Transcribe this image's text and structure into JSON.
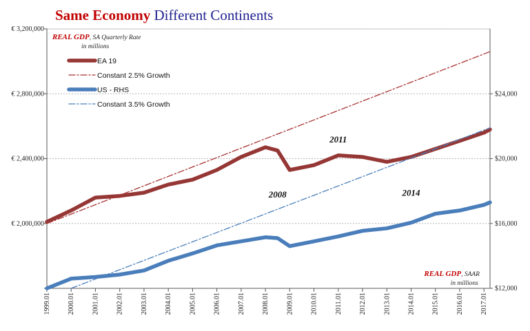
{
  "chart_data": {
    "type": "line",
    "title_bold": "Same Economy",
    "title_rest": "Different Continents",
    "left_axis": {
      "label_main": "REAL GDP",
      "label_rest": ", SA Quarterly Rate",
      "label_unit": "in millions",
      "ylim": [
        1600000,
        3200000
      ],
      "ticks": [
        {
          "value": 3200000,
          "label": "€ 3,200,000"
        },
        {
          "value": 2800000,
          "label": "€ 2,800,000"
        },
        {
          "value": 2400000,
          "label": "€ 2,400,000"
        },
        {
          "value": 2000000,
          "label": "€ 2,000,000"
        },
        {
          "value": 1600000,
          "label": ""
        }
      ]
    },
    "right_axis": {
      "label_main": "REAL GDP",
      "label_rest": ", SAAR",
      "label_unit": "in millions",
      "ylim": [
        12000,
        28000
      ],
      "ticks": [
        {
          "value": 24000,
          "label": "$24,000"
        },
        {
          "value": 20000,
          "label": "$20,000"
        },
        {
          "value": 16000,
          "label": "$16,000"
        },
        {
          "value": 12000,
          "label": "$12,000"
        }
      ]
    },
    "x_ticks": [
      "1999.Q1",
      "2000.Q1",
      "2001.Q1",
      "2002.Q1",
      "2003.Q1",
      "2004.Q1",
      "2005.Q1",
      "2006.Q1",
      "2007.Q1",
      "2008.Q1",
      "2009.Q1",
      "2010.Q1",
      "2011.Q1",
      "2012.Q1",
      "2013.Q1",
      "2014.Q1",
      "2015.Q1",
      "2016.Q1",
      "2017.Q1"
    ],
    "series": [
      {
        "name": "EA 19",
        "axis": "left",
        "color": "#953735",
        "style": "solid",
        "points": [
          [
            "1999.Q1",
            2010000
          ],
          [
            "2000.Q1",
            2080000
          ],
          [
            "2001.Q1",
            2160000
          ],
          [
            "2002.Q1",
            2170000
          ],
          [
            "2003.Q1",
            2190000
          ],
          [
            "2004.Q1",
            2240000
          ],
          [
            "2005.Q1",
            2270000
          ],
          [
            "2006.Q1",
            2330000
          ],
          [
            "2007.Q1",
            2410000
          ],
          [
            "2008.Q1",
            2470000
          ],
          [
            "2008.Q3",
            2450000
          ],
          [
            "2009.Q1",
            2330000
          ],
          [
            "2010.Q1",
            2360000
          ],
          [
            "2011.Q1",
            2420000
          ],
          [
            "2012.Q1",
            2410000
          ],
          [
            "2013.Q1",
            2380000
          ],
          [
            "2014.Q1",
            2410000
          ],
          [
            "2015.Q1",
            2460000
          ],
          [
            "2016.Q1",
            2510000
          ],
          [
            "2017.Q1",
            2560000
          ],
          [
            "2017.Q2",
            2580000
          ]
        ]
      },
      {
        "name": "Constant 2.5% Growth",
        "axis": "left",
        "color": "#a83232",
        "style": "dashdot",
        "points": [
          [
            "1999.Q1",
            2000000
          ],
          [
            "2017.Q2",
            3060000
          ]
        ]
      },
      {
        "name": "US - RHS",
        "axis": "right",
        "color": "#4a7ebb",
        "style": "solid",
        "points": [
          [
            "1999.Q1",
            12000
          ],
          [
            "2000.Q1",
            12600
          ],
          [
            "2001.Q1",
            12700
          ],
          [
            "2002.Q1",
            12850
          ],
          [
            "2003.Q1",
            13100
          ],
          [
            "2004.Q1",
            13700
          ],
          [
            "2005.Q1",
            14150
          ],
          [
            "2006.Q1",
            14650
          ],
          [
            "2007.Q1",
            14900
          ],
          [
            "2008.Q1",
            15150
          ],
          [
            "2008.Q3",
            15100
          ],
          [
            "2009.Q1",
            14600
          ],
          [
            "2010.Q1",
            14900
          ],
          [
            "2011.Q1",
            15200
          ],
          [
            "2012.Q1",
            15550
          ],
          [
            "2013.Q1",
            15700
          ],
          [
            "2014.Q1",
            16050
          ],
          [
            "2015.Q1",
            16600
          ],
          [
            "2016.Q1",
            16800
          ],
          [
            "2017.Q1",
            17150
          ],
          [
            "2017.Q2",
            17300
          ]
        ]
      },
      {
        "name": "Constant 3.5% Growth",
        "axis": "right",
        "color": "#4a7ebb",
        "style": "dashdot",
        "points": [
          [
            "2000.Q1",
            12000
          ],
          [
            "2017.Q2",
            21900
          ]
        ]
      }
    ],
    "legend": [
      {
        "label": "EA 19",
        "series": 0
      },
      {
        "label": "Constant 2.5% Growth",
        "series": 1
      },
      {
        "label": "US - RHS",
        "series": 2
      },
      {
        "label": "Constant 3.5% Growth",
        "series": 3
      }
    ],
    "annotations": [
      {
        "text": "2011",
        "x": "2011.Q1",
        "axis": "left",
        "y": 2500000
      },
      {
        "text": "2008",
        "x": "2008.Q3",
        "axis": "left",
        "y": 2160000
      },
      {
        "text": "2014",
        "x": "2014.Q1",
        "axis": "right",
        "y": 17700
      }
    ]
  }
}
